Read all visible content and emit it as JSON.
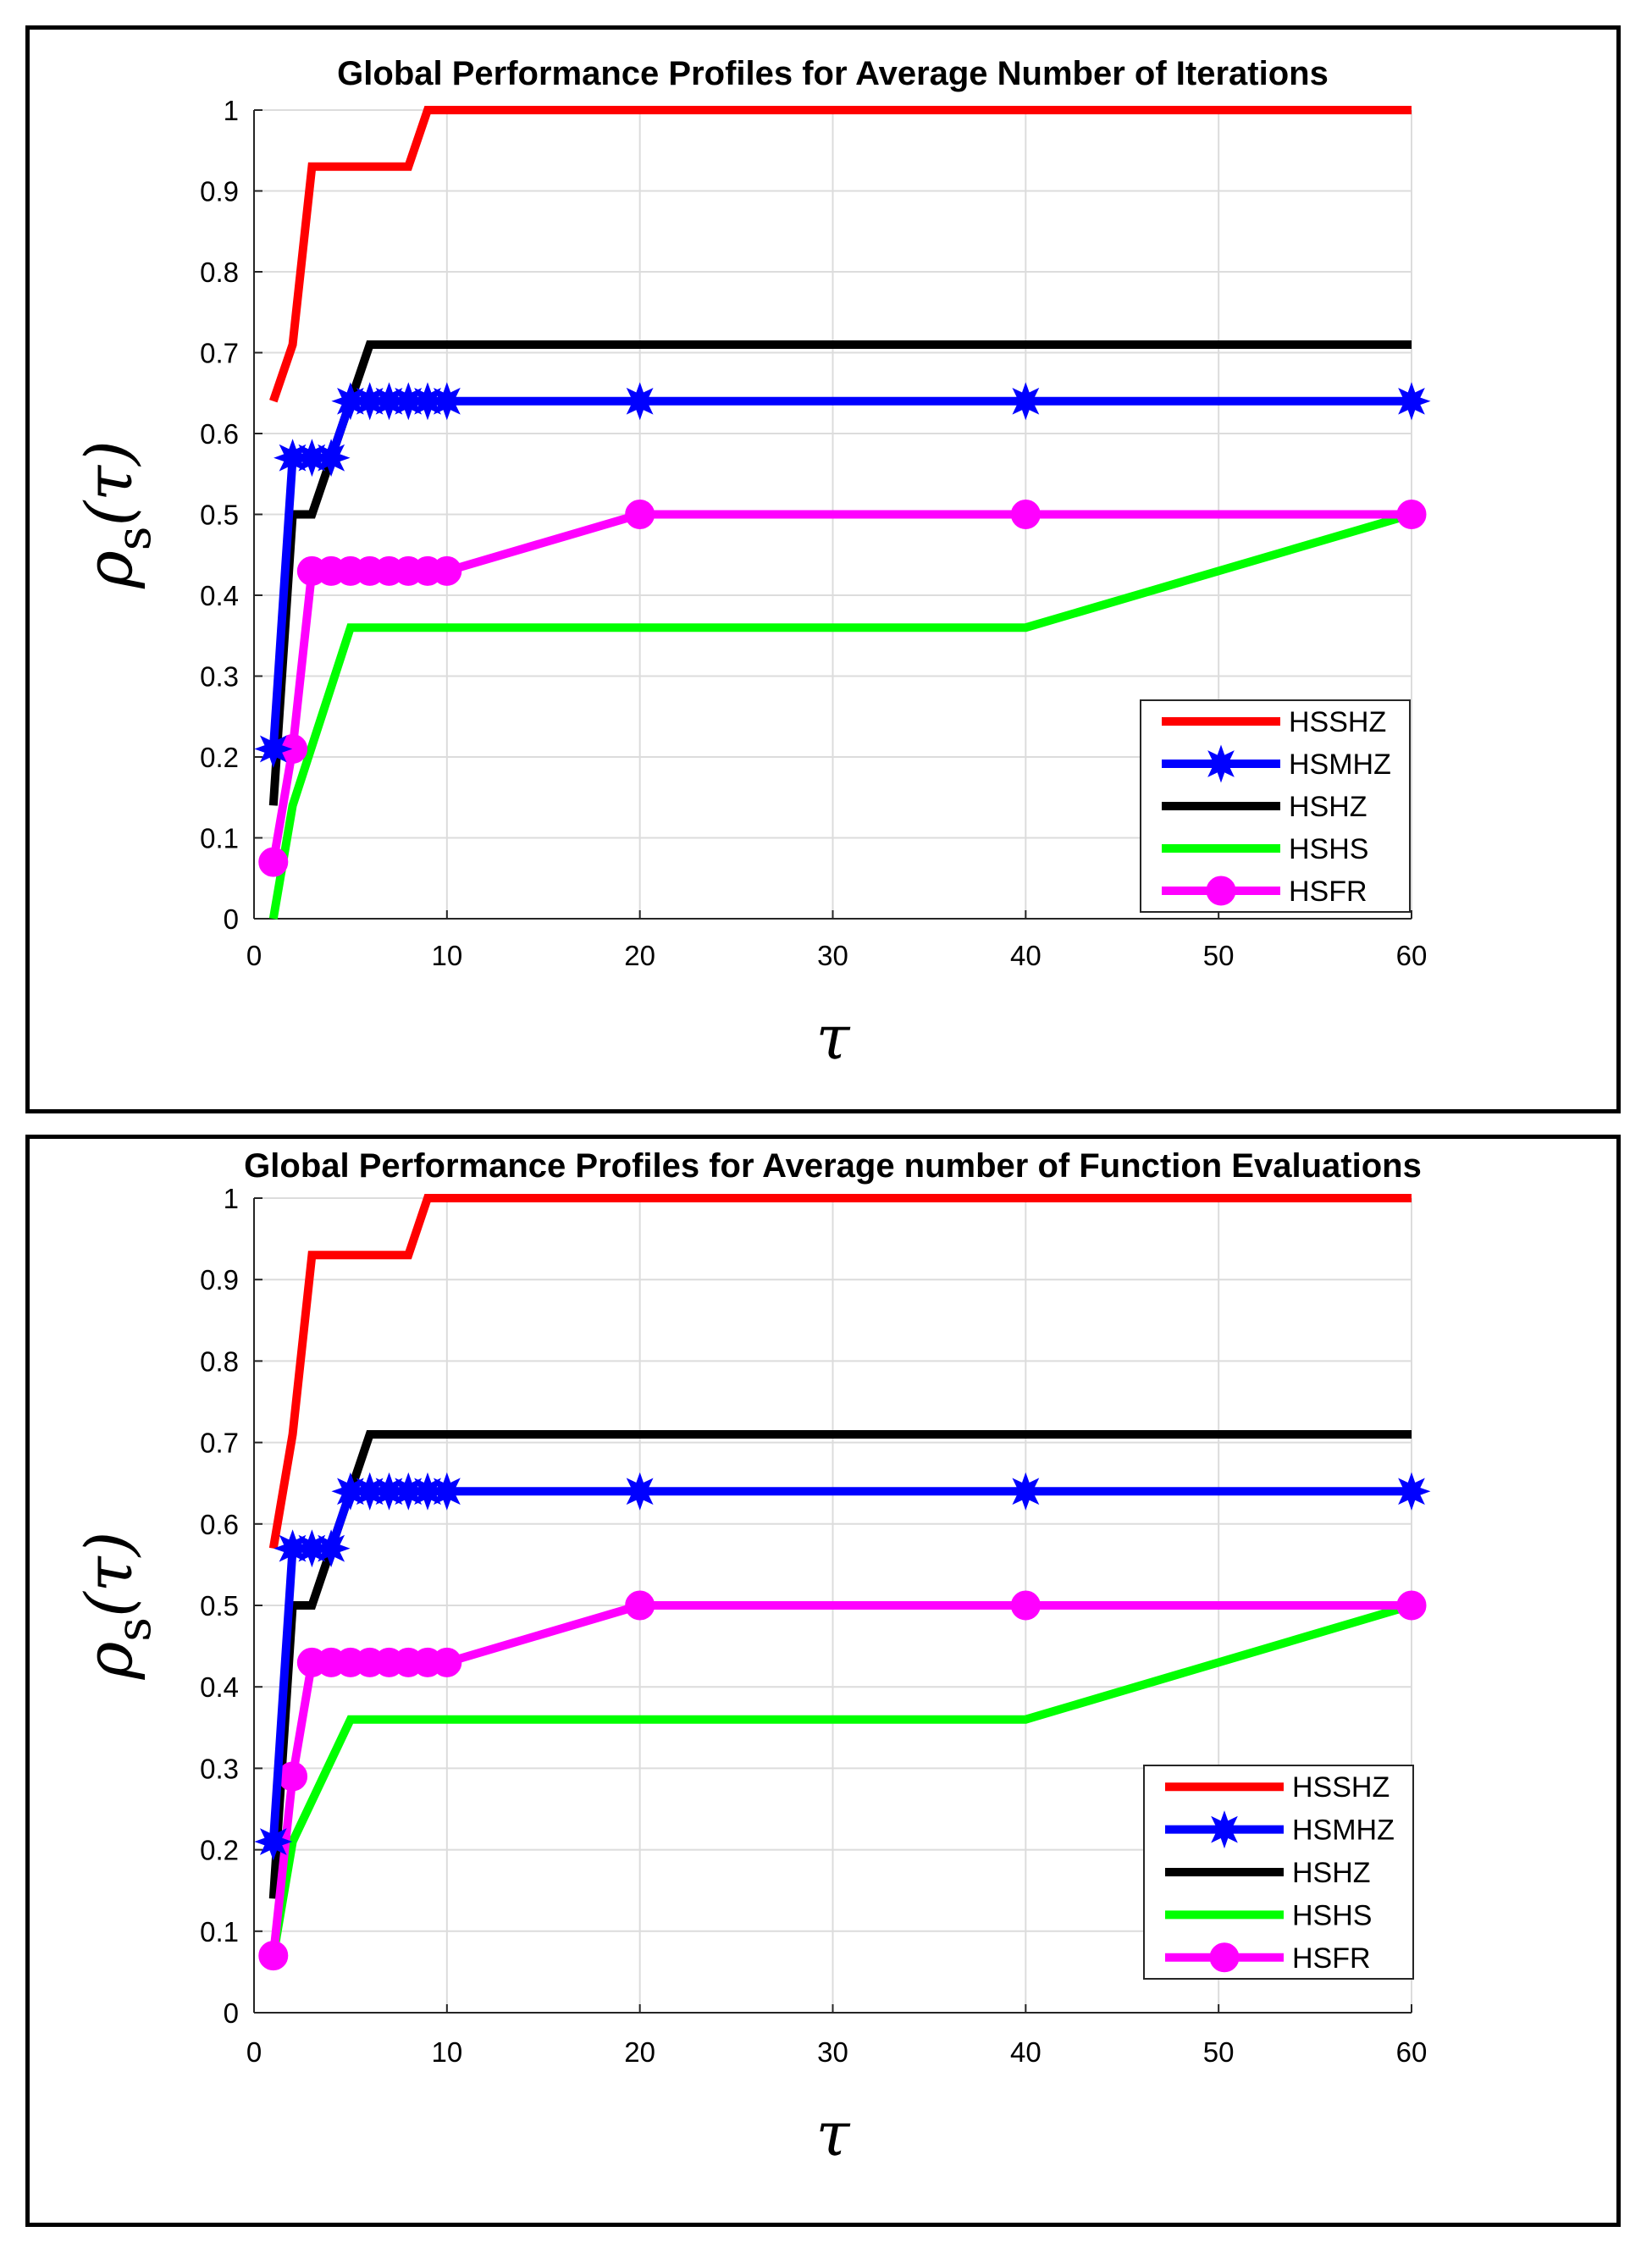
{
  "chart_data": [
    {
      "type": "line",
      "title": "Global Performance Profiles for Average Number of Iterations",
      "xlabel": "τ",
      "ylabel_main": "ρ",
      "ylabel_sub": "s",
      "ylabel_arg": "(τ)",
      "xlim": [
        0,
        60
      ],
      "ylim": [
        0,
        1
      ],
      "xticks": [
        0,
        10,
        20,
        30,
        40,
        50,
        60
      ],
      "yticks": [
        0,
        0.1,
        0.2,
        0.3,
        0.4,
        0.5,
        0.6,
        0.7,
        0.8,
        0.9,
        1
      ],
      "grid": true,
      "legend_position": "bottom-right",
      "series": [
        {
          "name": "HSSHZ",
          "color": "#ff0000",
          "marker": "none",
          "x": [
            1,
            2,
            3,
            8,
            9,
            60
          ],
          "y": [
            0.64,
            0.71,
            0.93,
            0.93,
            1,
            1
          ]
        },
        {
          "name": "HSMHZ",
          "color": "#0000ff",
          "marker": "star",
          "x": [
            1,
            2,
            3,
            4,
            5,
            6,
            7,
            8,
            9,
            10,
            20,
            40,
            60
          ],
          "y": [
            0.21,
            0.57,
            0.57,
            0.57,
            0.64,
            0.64,
            0.64,
            0.64,
            0.64,
            0.64,
            0.64,
            0.64,
            0.64
          ]
        },
        {
          "name": "HSHZ",
          "color": "#000000",
          "marker": "none",
          "x": [
            1,
            2,
            3,
            6,
            60
          ],
          "y": [
            0.14,
            0.5,
            0.5,
            0.71,
            0.71
          ]
        },
        {
          "name": "HSHS",
          "color": "#00ff00",
          "marker": "none",
          "x": [
            1,
            2,
            5,
            40,
            60
          ],
          "y": [
            0,
            0.14,
            0.36,
            0.36,
            0.5
          ]
        },
        {
          "name": "HSFR",
          "color": "#ff00ff",
          "marker": "circle",
          "x": [
            1,
            2,
            3,
            4,
            5,
            6,
            7,
            8,
            9,
            10,
            20,
            40,
            60
          ],
          "y": [
            0.07,
            0.21,
            0.43,
            0.43,
            0.43,
            0.43,
            0.43,
            0.43,
            0.43,
            0.43,
            0.5,
            0.5,
            0.5
          ]
        }
      ]
    },
    {
      "type": "line",
      "title": "Global Performance Profiles for Average number of Function Evaluations",
      "xlabel": "τ",
      "ylabel_main": "ρ",
      "ylabel_sub": "s",
      "ylabel_arg": "(τ)",
      "xlim": [
        0,
        60
      ],
      "ylim": [
        0,
        1
      ],
      "xticks": [
        0,
        10,
        20,
        30,
        40,
        50,
        60
      ],
      "yticks": [
        0,
        0.1,
        0.2,
        0.3,
        0.4,
        0.5,
        0.6,
        0.7,
        0.8,
        0.9,
        1
      ],
      "grid": true,
      "legend_position": "bottom-right",
      "series": [
        {
          "name": "HSSHZ",
          "color": "#ff0000",
          "marker": "none",
          "x": [
            1,
            2,
            3,
            8,
            9,
            60
          ],
          "y": [
            0.57,
            0.71,
            0.93,
            0.93,
            1,
            1
          ]
        },
        {
          "name": "HSMHZ",
          "color": "#0000ff",
          "marker": "star",
          "x": [
            1,
            2,
            3,
            4,
            5,
            6,
            7,
            8,
            9,
            10,
            20,
            40,
            60
          ],
          "y": [
            0.21,
            0.57,
            0.57,
            0.57,
            0.64,
            0.64,
            0.64,
            0.64,
            0.64,
            0.64,
            0.64,
            0.64,
            0.64
          ]
        },
        {
          "name": "HSHZ",
          "color": "#000000",
          "marker": "none",
          "x": [
            1,
            2,
            3,
            6,
            60
          ],
          "y": [
            0.14,
            0.5,
            0.5,
            0.71,
            0.71
          ]
        },
        {
          "name": "HSHS",
          "color": "#00ff00",
          "marker": "none",
          "x": [
            1,
            2,
            5,
            40,
            60
          ],
          "y": [
            0.07,
            0.21,
            0.36,
            0.36,
            0.5
          ]
        },
        {
          "name": "HSFR",
          "color": "#ff00ff",
          "marker": "circle",
          "x": [
            1,
            2,
            3,
            4,
            5,
            6,
            7,
            8,
            9,
            10,
            20,
            40,
            60
          ],
          "y": [
            0.07,
            0.29,
            0.43,
            0.43,
            0.43,
            0.43,
            0.43,
            0.43,
            0.43,
            0.43,
            0.5,
            0.5,
            0.5
          ]
        }
      ]
    }
  ]
}
